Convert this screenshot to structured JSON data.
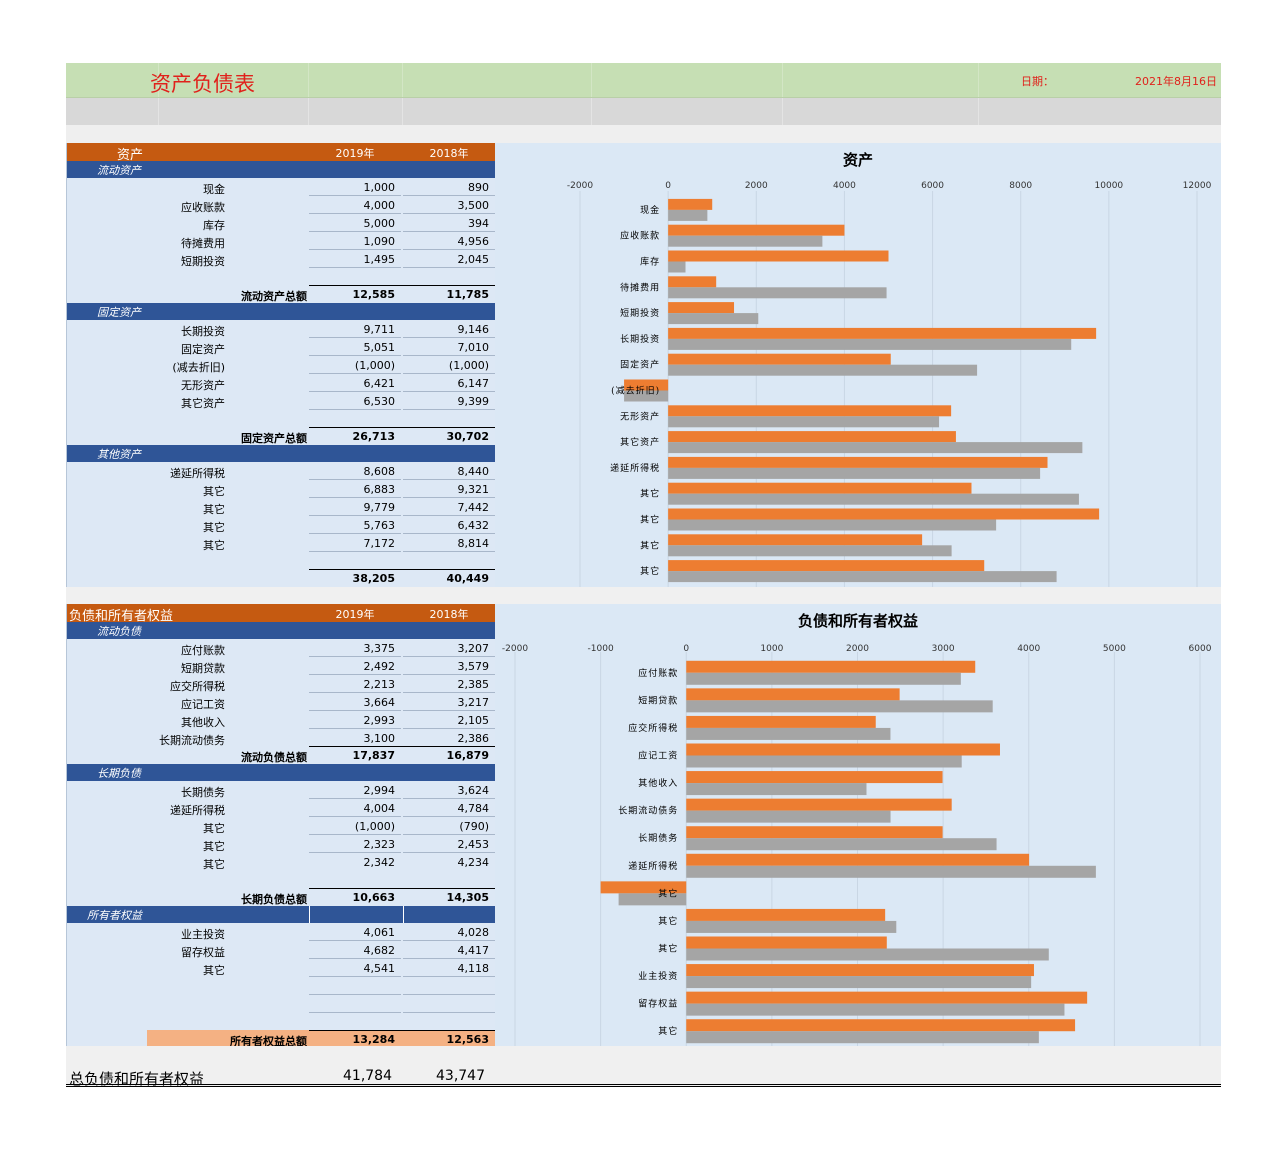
{
  "header": {
    "title": "资产负债表",
    "date_label": "日期：",
    "date_value": "2021年8月16日"
  },
  "years": {
    "y1": "2019年",
    "y2": "2018年"
  },
  "assets": {
    "title": "资产",
    "current": {
      "label": "流动资产",
      "items": [
        {
          "name": "现金",
          "v1": "1,000",
          "v2": "890"
        },
        {
          "name": "应收账款",
          "v1": "4,000",
          "v2": "3,500"
        },
        {
          "name": "库存",
          "v1": "5,000",
          "v2": "394"
        },
        {
          "name": "待摊费用",
          "v1": "1,090",
          "v2": "4,956"
        },
        {
          "name": "短期投资",
          "v1": "1,495",
          "v2": "2,045"
        }
      ],
      "total_label": "流动资产总额",
      "total_v1": "12,585",
      "total_v2": "11,785"
    },
    "fixed": {
      "label": "固定资产",
      "items": [
        {
          "name": "长期投资",
          "v1": "9,711",
          "v2": "9,146"
        },
        {
          "name": "固定资产",
          "v1": "5,051",
          "v2": "7,010"
        },
        {
          "name": "(减去折旧)",
          "v1": "(1,000)",
          "v2": "(1,000)"
        },
        {
          "name": "无形资产",
          "v1": "6,421",
          "v2": "6,147"
        },
        {
          "name": "其它资产",
          "v1": "6,530",
          "v2": "9,399"
        }
      ],
      "total_label": "固定资产总额",
      "total_v1": "26,713",
      "total_v2": "30,702"
    },
    "other": {
      "label": "其他资产",
      "items": [
        {
          "name": "递延所得税",
          "v1": "8,608",
          "v2": "8,440"
        },
        {
          "name": "其它",
          "v1": "6,883",
          "v2": "9,321"
        },
        {
          "name": "其它",
          "v1": "9,779",
          "v2": "7,442"
        },
        {
          "name": "其它",
          "v1": "5,763",
          "v2": "6,432"
        },
        {
          "name": "其它",
          "v1": "7,172",
          "v2": "8,814"
        }
      ],
      "total_v1": "38,205",
      "total_v2": "40,449"
    }
  },
  "liabilities": {
    "title": "负债和所有者权益",
    "current": {
      "label": "流动负债",
      "items": [
        {
          "name": "应付账款",
          "v1": "3,375",
          "v2": "3,207"
        },
        {
          "name": "短期贷款",
          "v1": "2,492",
          "v2": "3,579"
        },
        {
          "name": "应交所得税",
          "v1": "2,213",
          "v2": "2,385"
        },
        {
          "name": "应记工资",
          "v1": "3,664",
          "v2": "3,217"
        },
        {
          "name": "其他收入",
          "v1": "2,993",
          "v2": "2,105"
        },
        {
          "name": "长期流动债务",
          "v1": "3,100",
          "v2": "2,386"
        }
      ],
      "total_label": "流动负债总额",
      "total_v1": "17,837",
      "total_v2": "16,879"
    },
    "longterm": {
      "label": "长期负债",
      "items": [
        {
          "name": "长期债务",
          "v1": "2,994",
          "v2": "3,624"
        },
        {
          "name": "递延所得税",
          "v1": "4,004",
          "v2": "4,784"
        },
        {
          "name": "其它",
          "v1": "(1,000)",
          "v2": "(790)"
        },
        {
          "name": "其它",
          "v1": "2,323",
          "v2": "2,453"
        },
        {
          "name": "其它",
          "v1": "2,342",
          "v2": "4,234"
        }
      ],
      "total_label": "长期负债总额",
      "total_v1": "10,663",
      "total_v2": "14,305"
    },
    "equity": {
      "label": "所有者权益",
      "items": [
        {
          "name": "业主投资",
          "v1": "4,061",
          "v2": "4,028"
        },
        {
          "name": "留存权益",
          "v1": "4,682",
          "v2": "4,417"
        },
        {
          "name": "其它",
          "v1": "4,541",
          "v2": "4,118"
        }
      ],
      "total_label": "所有者权益总额",
      "total_v1": "13,284",
      "total_v2": "12,563"
    }
  },
  "footer": {
    "label": "总负债和所有者权益",
    "v1": "41,784",
    "v2": "43,747"
  },
  "chart_data": [
    {
      "type": "bar",
      "orientation": "horizontal",
      "title": "资产",
      "categories": [
        "现金",
        "应收账款",
        "库存",
        "待摊费用",
        "短期投资",
        "长期投资",
        "固定资产",
        "(减去折旧)",
        "无形资产",
        "其它资产",
        "递延所得税",
        "其它",
        "其它",
        "其它",
        "其它"
      ],
      "series": [
        {
          "color": "#ed7d31",
          "values": [
            1000,
            4000,
            5000,
            1090,
            1495,
            9711,
            5051,
            -1000,
            6421,
            6530,
            8608,
            6883,
            9779,
            5763,
            7172
          ]
        },
        {
          "color": "#a5a5a5",
          "values": [
            890,
            3500,
            394,
            4956,
            2045,
            9146,
            7010,
            -1000,
            6147,
            9399,
            8440,
            9321,
            7442,
            6432,
            8814
          ]
        }
      ],
      "xlim": [
        -2000,
        12000
      ],
      "ticks": [
        -2000,
        0,
        2000,
        4000,
        6000,
        8000,
        10000,
        12000
      ],
      "grid": true
    },
    {
      "type": "bar",
      "orientation": "horizontal",
      "title": "负债和所有者权益",
      "categories": [
        "应付账款",
        "短期贷款",
        "应交所得税",
        "应记工资",
        "其他收入",
        "长期流动债务",
        "长期债务",
        "递延所得税",
        "其它",
        "其它",
        "其它",
        "业主投资",
        "留存权益",
        "其它"
      ],
      "series": [
        {
          "color": "#ed7d31",
          "values": [
            3375,
            2492,
            2213,
            3664,
            2993,
            3100,
            2994,
            4004,
            -1000,
            2323,
            2342,
            4061,
            4682,
            4541
          ]
        },
        {
          "color": "#a5a5a5",
          "values": [
            3207,
            3579,
            2385,
            3217,
            2105,
            2386,
            3624,
            4784,
            -790,
            2453,
            4234,
            4028,
            4417,
            4118
          ]
        }
      ],
      "xlim": [
        -2000,
        6000
      ],
      "ticks": [
        -2000,
        -1000,
        0,
        1000,
        2000,
        3000,
        4000,
        5000,
        6000
      ],
      "grid": true
    }
  ]
}
